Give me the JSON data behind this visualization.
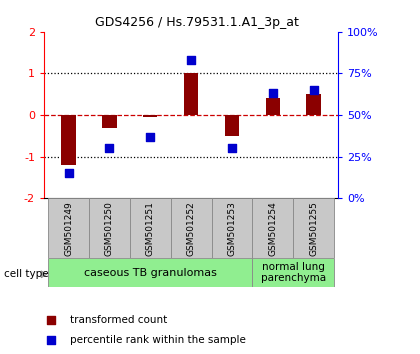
{
  "title": "GDS4256 / Hs.79531.1.A1_3p_at",
  "samples": [
    "GSM501249",
    "GSM501250",
    "GSM501251",
    "GSM501252",
    "GSM501253",
    "GSM501254",
    "GSM501255"
  ],
  "transformed_count": [
    -1.2,
    -0.3,
    -0.05,
    1.0,
    -0.5,
    0.4,
    0.5
  ],
  "percentile_rank": [
    15,
    30,
    37,
    83,
    30,
    63,
    65
  ],
  "ylim_left": [
    -2,
    2
  ],
  "ylim_right": [
    0,
    100
  ],
  "yticks_left": [
    -2,
    -1,
    0,
    1,
    2
  ],
  "yticks_right": [
    0,
    25,
    50,
    75,
    100
  ],
  "ytick_labels_right": [
    "0%",
    "25%",
    "50%",
    "75%",
    "100%"
  ],
  "bar_color": "#8B0000",
  "dot_color": "#0000CD",
  "dotted_line_color": "#000000",
  "zero_line_color": "#CC0000",
  "group1_label": "caseous TB granulomas",
  "group2_label": "normal lung\nparenchyma",
  "group1_color": "#90EE90",
  "group2_color": "#90EE90",
  "cell_type_label": "cell type",
  "legend_bar_label": "transformed count",
  "legend_dot_label": "percentile rank within the sample",
  "bar_width": 0.35,
  "dot_size": 30,
  "sample_box_color": "#C8C8C8",
  "title_fontsize": 9,
  "axis_tick_fontsize": 8,
  "sample_label_fontsize": 6.5,
  "group_label_fontsize": 8,
  "legend_fontsize": 7.5
}
